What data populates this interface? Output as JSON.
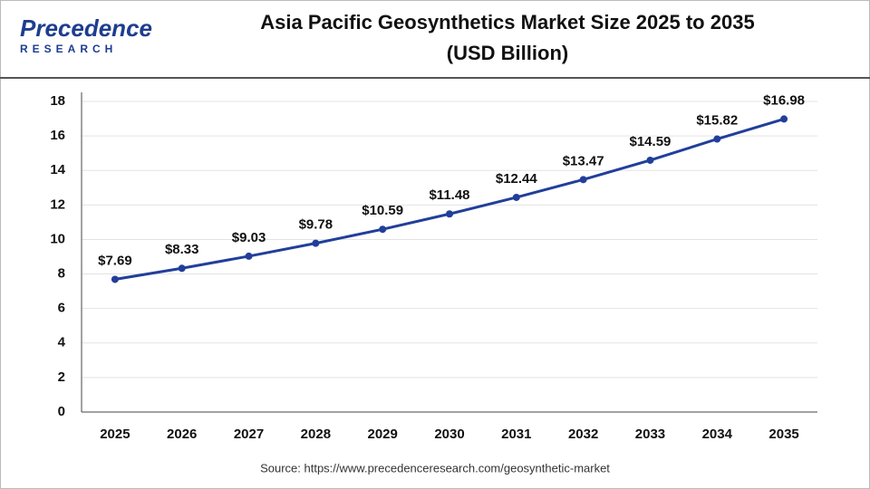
{
  "logo": {
    "name": "Precedence",
    "tagline": "RESEARCH"
  },
  "source": "Source: https://www.precedenceresearch.com/geosynthetic-market",
  "chart_data": {
    "type": "line",
    "title": "Asia Pacific Geosynthetics Market Size 2025 to 2035",
    "subtitle": "(USD Billion)",
    "categories": [
      "2025",
      "2026",
      "2027",
      "2028",
      "2029",
      "2030",
      "2031",
      "2032",
      "2033",
      "2034",
      "2035"
    ],
    "series": [
      {
        "color": "#213f9a",
        "values": [
          7.69,
          8.33,
          9.03,
          9.78,
          10.59,
          11.48,
          12.44,
          13.47,
          14.59,
          15.82,
          16.98
        ],
        "value_labels": [
          "$7.69",
          "$8.33",
          "$9.03",
          "$9.78",
          "$10.59",
          "$11.48",
          "$12.44",
          "$13.47",
          "$14.59",
          "$15.82",
          "$16.98"
        ]
      }
    ],
    "ylim": [
      0,
      18
    ],
    "yticks": [
      0,
      2,
      4,
      6,
      8,
      10,
      12,
      14,
      16,
      18
    ],
    "grid": true
  }
}
